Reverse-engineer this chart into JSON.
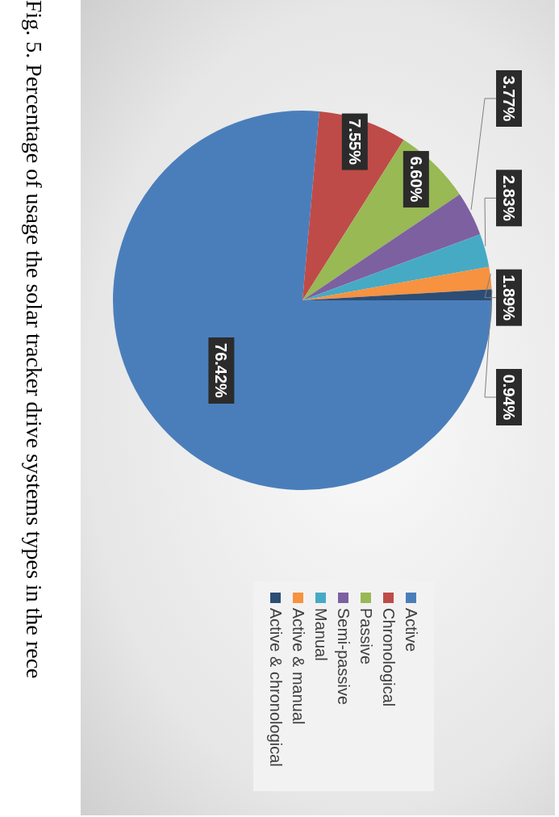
{
  "chart_data": {
    "type": "pie",
    "categories": [
      "Active",
      "Chronological",
      "Passive",
      "Semi-passive",
      "Manual",
      "Active & manual",
      "Active & chronological"
    ],
    "values": [
      76.42,
      7.55,
      6.6,
      3.77,
      2.83,
      1.89,
      0.94
    ],
    "colors": [
      "#4a7ebb",
      "#be4b48",
      "#98b954",
      "#7d60a0",
      "#46aac5",
      "#f69240",
      "#2c4d75"
    ],
    "value_labels": [
      "76.42%",
      "7.55%",
      "6.60%",
      "3.77%",
      "2.83%",
      "1.89%",
      "0.94%"
    ],
    "legend": "right",
    "annotations": [
      "Fig. 5. Percentage of usage the solar tracker drive systems types in the rece"
    ]
  }
}
